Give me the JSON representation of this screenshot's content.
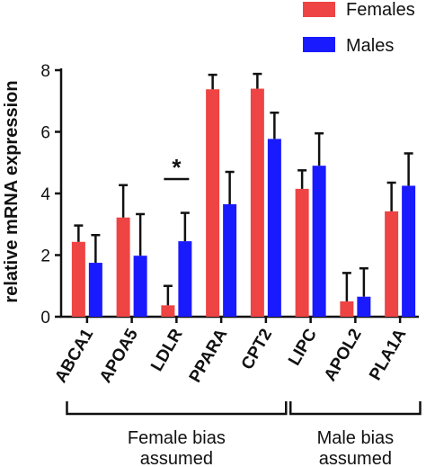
{
  "chart_data": {
    "type": "bar",
    "title": "",
    "xlabel": "",
    "ylabel": "relative mRNA expression",
    "ylim": [
      0,
      8
    ],
    "yticks": [
      0,
      2,
      4,
      6,
      8
    ],
    "categories": [
      "ABCA1",
      "APOA5",
      "LDLR",
      "PPARA",
      "CPT2",
      "LIPC",
      "APOL2",
      "PLA1A"
    ],
    "series": [
      {
        "name": "Females",
        "color": "#ee4444",
        "values": [
          2.43,
          3.22,
          0.37,
          7.38,
          7.4,
          4.15,
          0.5,
          3.42
        ],
        "errors": [
          0.53,
          1.05,
          0.63,
          0.47,
          0.48,
          0.6,
          0.92,
          0.93
        ]
      },
      {
        "name": "Males",
        "color": "#1a1aff",
        "values": [
          1.75,
          1.98,
          2.45,
          3.65,
          5.77,
          4.9,
          0.65,
          4.25
        ],
        "errors": [
          0.9,
          1.35,
          0.92,
          1.05,
          0.85,
          1.05,
          0.92,
          1.05
        ]
      }
    ],
    "annotations": [
      {
        "text": "*",
        "category": "LDLR"
      }
    ],
    "groups": [
      {
        "label_line1": "Female bias",
        "label_line2": "assumed",
        "from": "ABCA1",
        "to": "CPT2"
      },
      {
        "label_line1": "Male bias",
        "label_line2": "assumed",
        "from": "LIPC",
        "to": "PLA1A"
      }
    ],
    "legend_position": "top-right",
    "grid": false
  }
}
